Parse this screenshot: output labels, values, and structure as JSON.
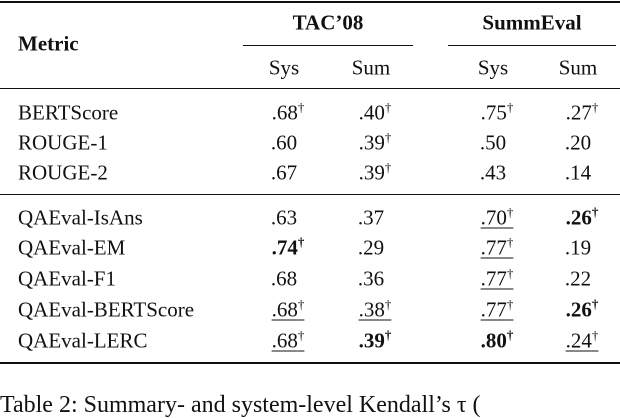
{
  "table": {
    "header": {
      "metric": "Metric",
      "groups": [
        "TAC’08",
        "SummEval"
      ],
      "columns": [
        "Sys",
        "Sum",
        "Sys",
        "Sum"
      ]
    },
    "row_groups": [
      [
        {
          "label": "BERTScore",
          "cells": [
            {
              "text": ".68",
              "sup": "†"
            },
            {
              "text": ".40",
              "sup": "†"
            },
            {
              "text": ".75",
              "sup": "†"
            },
            {
              "text": ".27",
              "sup": "†"
            }
          ]
        },
        {
          "label": "ROUGE-1",
          "cells": [
            {
              "text": ".60"
            },
            {
              "text": ".39",
              "sup": "†"
            },
            {
              "text": ".50"
            },
            {
              "text": ".20"
            }
          ]
        },
        {
          "label": "ROUGE-2",
          "cells": [
            {
              "text": ".67"
            },
            {
              "text": ".39",
              "sup": "†"
            },
            {
              "text": ".43"
            },
            {
              "text": ".14"
            }
          ]
        }
      ],
      [
        {
          "label": "QAEval-IsAns",
          "cells": [
            {
              "text": ".63"
            },
            {
              "text": ".37"
            },
            {
              "text": ".70",
              "sup": "†",
              "underline": true
            },
            {
              "text": ".26",
              "sup": "†",
              "bold": true
            }
          ]
        },
        {
          "label": "QAEval-EM",
          "cells": [
            {
              "text": ".74",
              "sup": "†",
              "bold": true
            },
            {
              "text": ".29"
            },
            {
              "text": ".77",
              "sup": "†",
              "underline": true
            },
            {
              "text": ".19"
            }
          ]
        },
        {
          "label": "QAEval-F1",
          "cells": [
            {
              "text": ".68"
            },
            {
              "text": ".36"
            },
            {
              "text": ".77",
              "sup": "†",
              "underline": true
            },
            {
              "text": ".22"
            }
          ]
        },
        {
          "label": "QAEval-BERTScore",
          "cells": [
            {
              "text": ".68",
              "sup": "†",
              "underline": true
            },
            {
              "text": ".38",
              "sup": "†",
              "underline": true
            },
            {
              "text": ".77",
              "sup": "†",
              "underline": true
            },
            {
              "text": ".26",
              "sup": "†",
              "bold": true
            }
          ]
        },
        {
          "label": "QAEval-LERC",
          "cells": [
            {
              "text": ".68",
              "sup": "†",
              "underline": true
            },
            {
              "text": ".39",
              "sup": "†",
              "bold": true
            },
            {
              "text": ".80",
              "sup": "†",
              "bold": true
            },
            {
              "text": ".24",
              "sup": "†",
              "underline": true
            }
          ]
        }
      ]
    ],
    "caption": "Table 2: Summary- and system-level Kendall’s τ ("
  }
}
